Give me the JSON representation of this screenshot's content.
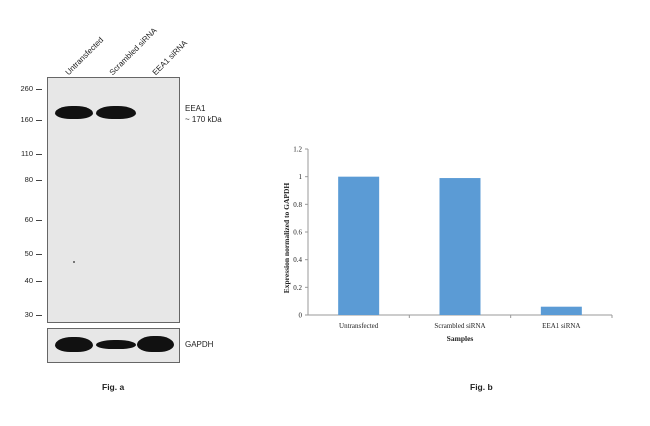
{
  "fig_a": {
    "lanes": [
      "Untransfected",
      "Scrambled siRNA",
      "EEA1 siRNA"
    ],
    "mw_markers": [
      "260",
      "160",
      "110",
      "80",
      "60",
      "50",
      "40",
      "30"
    ],
    "target_label": "EEA1",
    "target_size": "~ 170 kDa",
    "loading_label": "GAPDH",
    "caption": "Fig. a",
    "band_intensity_eea1": [
      1.0,
      1.0,
      0.0
    ],
    "band_intensity_gapdh": [
      1.0,
      0.75,
      1.0
    ]
  },
  "chart_data": {
    "type": "bar",
    "categories": [
      "Untransfected",
      "Scrambled siRNA",
      "EEA1 siRNA"
    ],
    "values": [
      1.0,
      0.99,
      0.06
    ],
    "xlabel": "Samples",
    "ylabel": "Expression normalized to GAPDH",
    "ylim": [
      0,
      1.2
    ],
    "yticks": [
      "0",
      "0.2",
      "0.4",
      "0.6",
      "0.8",
      "1",
      "1.2"
    ],
    "bar_color": "#5b9bd5",
    "grid": false
  },
  "fig_b": {
    "caption": "Fig. b"
  }
}
